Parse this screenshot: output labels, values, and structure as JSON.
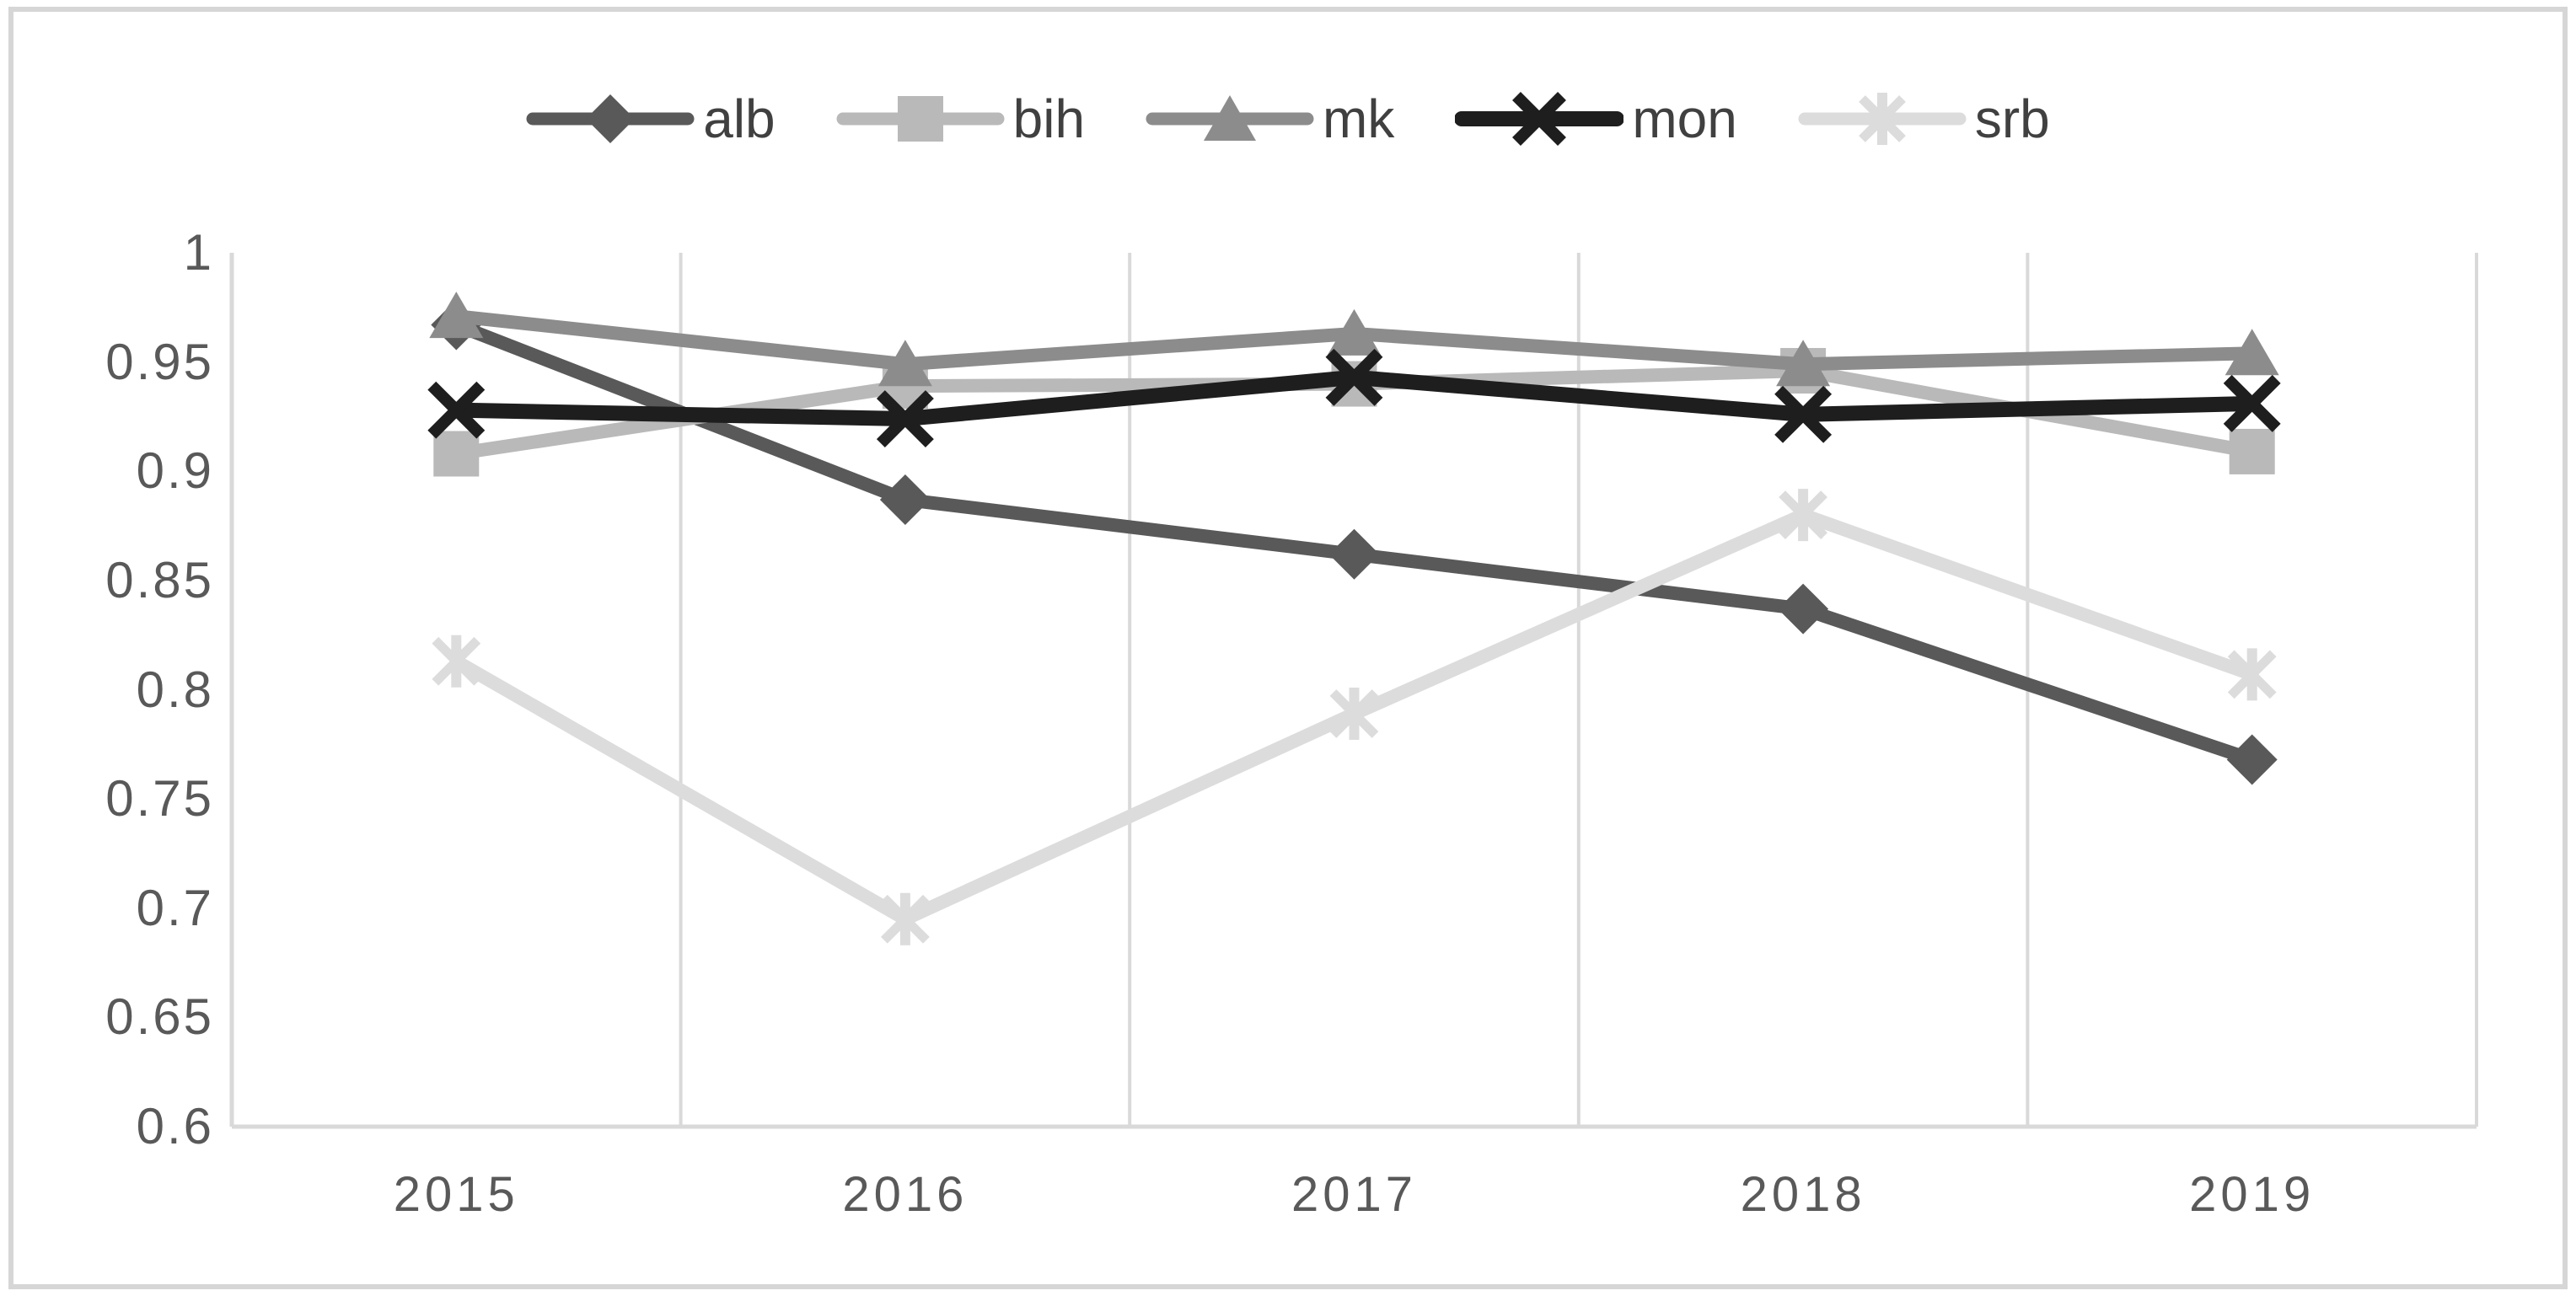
{
  "figure": {
    "background_color": "#ffffff",
    "border_color": "#d6d6d6"
  },
  "chart_data": {
    "type": "line",
    "title": "",
    "xlabel": "",
    "ylabel": "",
    "categories": [
      "2015",
      "2016",
      "2017",
      "2018",
      "2019"
    ],
    "series": [
      {
        "name": "alb",
        "marker": "diamond",
        "color": "#595959",
        "line_width": 16,
        "values": [
          0.967,
          0.887,
          0.862,
          0.837,
          0.768
        ]
      },
      {
        "name": "bih",
        "marker": "square",
        "color": "#b9b9b9",
        "line_width": 16,
        "values": [
          0.908,
          0.939,
          0.94,
          0.946,
          0.909
        ]
      },
      {
        "name": "mk",
        "marker": "triangle",
        "color": "#8c8c8c",
        "line_width": 16,
        "values": [
          0.971,
          0.949,
          0.963,
          0.949,
          0.954
        ]
      },
      {
        "name": "mon",
        "marker": "x",
        "color": "#1e1e1e",
        "line_width": 18,
        "values": [
          0.928,
          0.924,
          0.943,
          0.926,
          0.931
        ]
      },
      {
        "name": "srb",
        "marker": "asterisk",
        "color": "#dcdcdc",
        "line_width": 16,
        "values": [
          0.813,
          0.695,
          0.789,
          0.88,
          0.807
        ]
      }
    ],
    "ylim": [
      0.6,
      1.0
    ],
    "ytick_step": 0.05,
    "ytick_labels": [
      "1",
      "0.95",
      "0.9",
      "0.85",
      "0.8",
      "0.75",
      "0.7",
      "0.65",
      "0.6"
    ],
    "grid": "vertical-only",
    "grid_color": "#d9d9d9",
    "axis_color": "#d9d9d9",
    "tick_label_color": "#595959",
    "legend_position": "top"
  }
}
